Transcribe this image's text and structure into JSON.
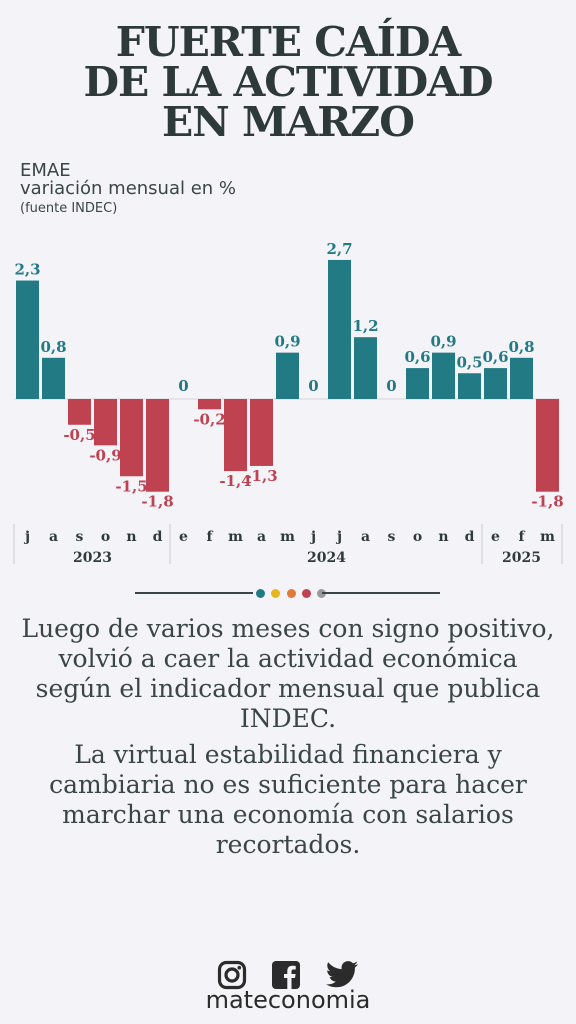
{
  "title_lines": [
    "FUERTE CAÍDA",
    "DE LA ACTIVIDAD",
    "EN MARZO"
  ],
  "subtitle": {
    "line1": "EMAE",
    "line2": "variación mensual en %",
    "line3": "(fuente INDEC)"
  },
  "colors": {
    "positive": "#217a84",
    "negative": "#be4250",
    "zero_label": "#217a84",
    "text": "#2f3b3a",
    "divider_dots": [
      "#217a84",
      "#e8b522",
      "#e07a3a",
      "#be4250",
      "#9a9a9a"
    ]
  },
  "chart_data": {
    "type": "bar",
    "categories": [
      "j",
      "a",
      "s",
      "o",
      "n",
      "d",
      "e",
      "f",
      "m",
      "a",
      "m",
      "j",
      "j",
      "a",
      "s",
      "o",
      "n",
      "d",
      "e",
      "f",
      "m"
    ],
    "values": [
      2.3,
      0.8,
      -0.5,
      -0.9,
      -1.5,
      -1.8,
      0,
      -0.2,
      -1.4,
      -1.3,
      0.9,
      0,
      2.7,
      1.2,
      0,
      0.6,
      0.9,
      0.5,
      0.6,
      0.8,
      -1.8
    ],
    "value_labels": [
      "2,3",
      "0,8",
      "-0,5",
      "-0,9",
      "-1,5",
      "-1,8",
      "0",
      "-0,2",
      "-1,4",
      "-1,3",
      "0,9",
      "0",
      "2,7",
      "1,2",
      "0",
      "0,6",
      "0,9",
      "0,5",
      "0,6",
      "0,8",
      "-1,8"
    ],
    "years": [
      {
        "label": "2023",
        "from": 0,
        "to": 5
      },
      {
        "label": "2024",
        "from": 6,
        "to": 17
      },
      {
        "label": "2025",
        "from": 18,
        "to": 20
      }
    ],
    "ylim": [
      -1.8,
      2.7
    ],
    "grid": false,
    "legend": "none"
  },
  "paragraphs": [
    "Luego de varios meses con signo positivo, volvió a caer la actividad económica según el indicador mensual que publica INDEC.",
    "La virtual estabilidad financiera y cambiaria no es suficiente para hacer marchar una economía con salarios recortados."
  ],
  "social_icons": [
    "instagram-icon",
    "facebook-icon",
    "twitter-icon"
  ],
  "brand": "mateconomia"
}
